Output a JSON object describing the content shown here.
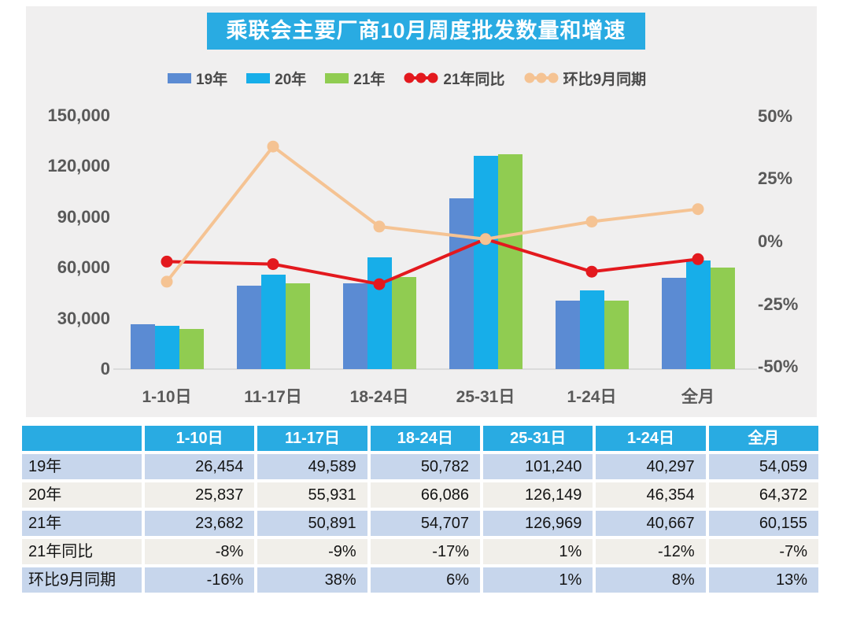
{
  "title": "乘联会主要厂商10月周度批发数量和增速",
  "colors": {
    "title_bg": "#29ABE2",
    "panel_bg": "#F0EFEF",
    "bar_19": "#5B8BD3",
    "bar_20": "#17AEE9",
    "bar_21": "#90CC51",
    "line_yoy": "#E3191E",
    "line_mom": "#F5C393",
    "table_header_bg": "#29ABE2",
    "row_blue": "#C7D6EC",
    "row_white": "#F1EFEA",
    "axis_text": "#595959"
  },
  "chart_data": {
    "type": "bar+line combo",
    "categories": [
      "1-10日",
      "11-17日",
      "18-24日",
      "25-31日",
      "1-24日",
      "全月"
    ],
    "bar_series": [
      {
        "name": "19年",
        "color": "#5B8BD3",
        "values": [
          26454,
          49589,
          50782,
          101240,
          40297,
          54059
        ]
      },
      {
        "name": "20年",
        "color": "#17AEE9",
        "values": [
          25837,
          55931,
          66086,
          126149,
          46354,
          64372
        ]
      },
      {
        "name": "21年",
        "color": "#90CC51",
        "values": [
          23682,
          50891,
          54707,
          126969,
          40667,
          60155
        ]
      }
    ],
    "line_series": [
      {
        "name": "21年同比",
        "color": "#E3191E",
        "axis": "right",
        "values_pct": [
          -8,
          -9,
          -17,
          1,
          -12,
          -7
        ]
      },
      {
        "name": "环比9月同期",
        "color": "#F5C393",
        "axis": "right",
        "values_pct": [
          -16,
          38,
          6,
          1,
          8,
          13
        ]
      }
    ],
    "left_axis": {
      "ticks": [
        "150,000",
        "120,000",
        "90,000",
        "60,000",
        "30,000",
        "0"
      ],
      "min": 0,
      "max": 150000
    },
    "right_axis": {
      "ticks": [
        "50%",
        "25%",
        "0%",
        "-25%",
        "-50%"
      ],
      "min": -50,
      "max": 50
    },
    "title": "乘联会主要厂商10月周度批发数量和增速",
    "xlabel": "",
    "ylabel": "",
    "grid": "off",
    "legend_position": "top"
  },
  "table": {
    "header": [
      "",
      "1-10日",
      "11-17日",
      "18-24日",
      "25-31日",
      "1-24日",
      "全月"
    ],
    "rows": [
      {
        "label": "19年",
        "values": [
          "26,454",
          "49,589",
          "50,782",
          "101,240",
          "40,297",
          "54,059"
        ]
      },
      {
        "label": "20年",
        "values": [
          "25,837",
          "55,931",
          "66,086",
          "126,149",
          "46,354",
          "64,372"
        ]
      },
      {
        "label": "21年",
        "values": [
          "23,682",
          "50,891",
          "54,707",
          "126,969",
          "40,667",
          "60,155"
        ]
      },
      {
        "label": "21年同比",
        "values": [
          "-8%",
          "-9%",
          "-17%",
          "1%",
          "-12%",
          "-7%"
        ]
      },
      {
        "label": "环比9月同期",
        "values": [
          "-16%",
          "38%",
          "6%",
          "1%",
          "8%",
          "13%"
        ]
      }
    ]
  }
}
